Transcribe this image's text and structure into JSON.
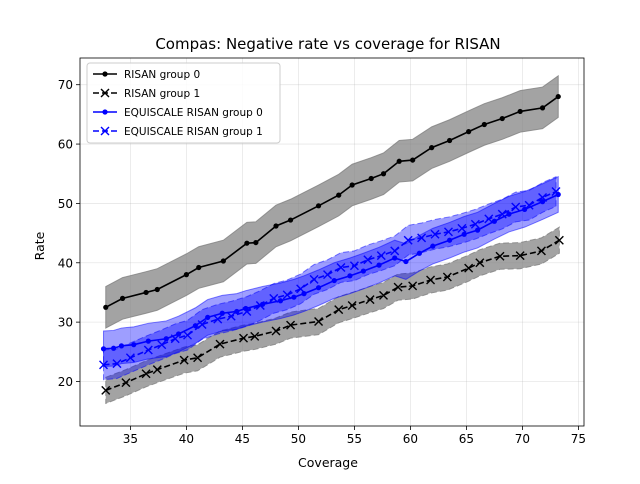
{
  "chart_data": {
    "type": "line",
    "title": "Compas: Negative rate vs coverage for RISAN",
    "xlabel": "Coverage",
    "ylabel": "Rate",
    "xlim": [
      30.5,
      75.5
    ],
    "ylim": [
      12.5,
      74.5
    ],
    "xticks": [
      35,
      40,
      45,
      50,
      55,
      60,
      65,
      70,
      75
    ],
    "yticks": [
      20,
      30,
      40,
      50,
      60,
      70
    ],
    "grid": true,
    "legend_position": "upper-left",
    "series": [
      {
        "name": "RISAN group 0",
        "color": "#000000",
        "line_style": "solid",
        "marker": "dot",
        "band_color": "#808080",
        "band_edge": "solid",
        "band_halfwidth": 3.5,
        "x": [
          32.8,
          34.3,
          36.4,
          37.4,
          40.0,
          41.1,
          43.3,
          45.4,
          46.2,
          48.0,
          49.3,
          51.8,
          53.6,
          54.8,
          56.5,
          57.6,
          59.0,
          60.2,
          61.9,
          63.5,
          65.2,
          66.6,
          68.2,
          69.8,
          71.8,
          73.2
        ],
        "y": [
          32.5,
          34.0,
          35.0,
          35.5,
          38.0,
          39.2,
          40.3,
          43.3,
          43.4,
          46.2,
          47.2,
          49.6,
          51.4,
          53.1,
          54.2,
          55.0,
          57.1,
          57.3,
          59.4,
          60.6,
          62.1,
          63.3,
          64.3,
          65.5,
          66.1,
          68.0
        ]
      },
      {
        "name": "RISAN group 1",
        "color": "#000000",
        "line_style": "dashed",
        "marker": "x",
        "band_color": "#808080",
        "band_edge": "dashed",
        "band_halfwidth": 2.2,
        "x": [
          32.8,
          34.6,
          36.4,
          37.4,
          39.8,
          41.0,
          43.0,
          45.1,
          46.1,
          48.0,
          49.3,
          51.8,
          53.6,
          54.8,
          56.4,
          57.6,
          58.9,
          60.2,
          61.8,
          63.3,
          65.2,
          66.2,
          68.0,
          69.8,
          71.7,
          73.3
        ],
        "y": [
          18.5,
          19.8,
          21.3,
          22.0,
          23.6,
          24.0,
          26.3,
          27.3,
          27.6,
          28.5,
          29.5,
          30.1,
          32.1,
          32.8,
          33.8,
          34.5,
          35.9,
          36.1,
          37.1,
          37.6,
          39.1,
          40.0,
          41.1,
          41.2,
          42.0,
          43.8
        ]
      },
      {
        "name": "EQUISCALE RISAN group 0",
        "color": "#0000ff",
        "line_style": "solid",
        "marker": "dot",
        "band_color": "#0000ff",
        "band_edge": "solid",
        "band_halfwidth": 3.0,
        "x": [
          32.6,
          33.5,
          34.2,
          35.3,
          36.6,
          38.2,
          39.3,
          40.8,
          41.9,
          43.2,
          44.5,
          45.3,
          46.8,
          48.4,
          49.6,
          50.5,
          51.8,
          53.2,
          54.6,
          55.8,
          57.2,
          58.6,
          59.6,
          60.8,
          62.0,
          63.5,
          64.8,
          66.0,
          67.5,
          68.8,
          70.2,
          71.8,
          73.2
        ],
        "y": [
          25.5,
          25.6,
          26.0,
          26.2,
          26.8,
          27.2,
          28.0,
          29.4,
          30.8,
          31.5,
          31.8,
          32.3,
          33.0,
          33.6,
          34.2,
          34.8,
          35.8,
          37.0,
          37.8,
          38.6,
          39.6,
          40.8,
          40.2,
          41.6,
          42.8,
          43.8,
          44.8,
          45.5,
          47.0,
          48.2,
          49.0,
          50.3,
          51.5
        ]
      },
      {
        "name": "EQUISCALE RISAN group 1",
        "color": "#0000ff",
        "line_style": "dashed",
        "marker": "x",
        "band_color": "#0000ff",
        "band_edge": "dashed",
        "band_halfwidth": 2.5,
        "x": [
          32.6,
          33.8,
          35.0,
          36.6,
          37.8,
          39.0,
          40.1,
          41.4,
          42.8,
          44.0,
          45.4,
          46.6,
          47.8,
          49.0,
          50.2,
          51.4,
          52.6,
          53.8,
          55.0,
          56.2,
          57.4,
          58.6,
          59.8,
          61.0,
          62.2,
          63.4,
          64.6,
          65.8,
          67.0,
          68.2,
          69.4,
          70.6,
          71.8,
          73.0
        ],
        "y": [
          22.8,
          23.0,
          24.0,
          25.3,
          26.2,
          27.2,
          27.8,
          29.6,
          30.5,
          31.0,
          31.8,
          32.8,
          34.0,
          34.6,
          35.6,
          37.2,
          38.0,
          39.2,
          39.5,
          40.5,
          41.2,
          42.0,
          43.8,
          44.2,
          44.8,
          45.2,
          45.8,
          46.5,
          47.4,
          48.2,
          49.4,
          49.7,
          51.0,
          52.0
        ]
      }
    ]
  }
}
